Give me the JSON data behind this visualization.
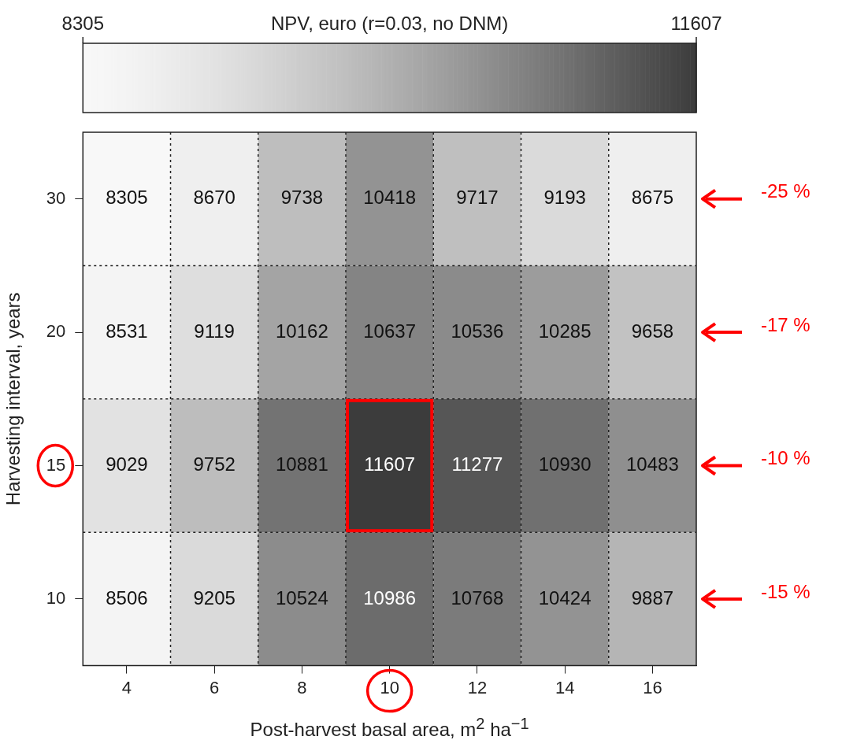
{
  "chart_data": {
    "type": "heatmap",
    "clabel": "NPV, euro (r=0.03, no DNM)",
    "xlabel": "Post-harvest basal area, m$^{2}$ ha$^{−1}$",
    "ylabel": "Harvesting interval, years",
    "categories": [
      "4",
      "6",
      "8",
      "10",
      "12",
      "14",
      "16"
    ],
    "y_categories": [
      "30",
      "20",
      "15",
      "10"
    ],
    "cells": [
      [
        8305,
        8670,
        9738,
        10418,
        9717,
        9193,
        8675
      ],
      [
        8531,
        9119,
        10162,
        10637,
        10536,
        10285,
        9658
      ],
      [
        9029,
        9752,
        10881,
        11607,
        11277,
        10930,
        10483
      ],
      [
        8506,
        9205,
        10524,
        10986,
        10768,
        10424,
        9887
      ]
    ],
    "clim": [
      8305,
      11607
    ],
    "cticks": [
      8305,
      11607
    ],
    "grid": true,
    "data_labels": true,
    "annotations": [
      "-25 %",
      "-17 %",
      "-10 %",
      "-15 %"
    ]
  }
}
